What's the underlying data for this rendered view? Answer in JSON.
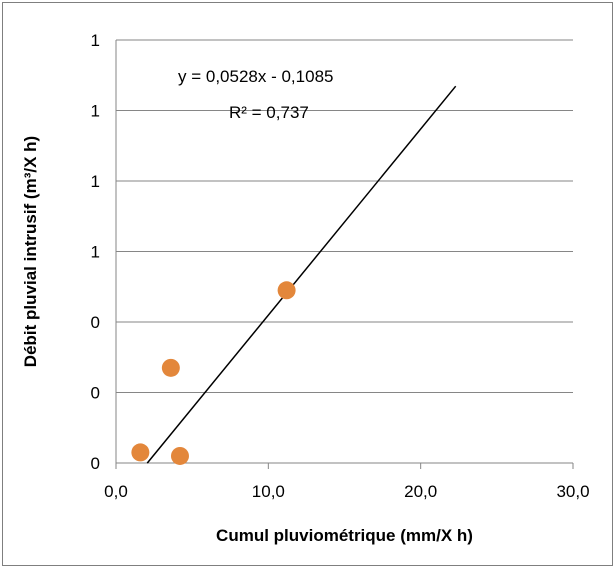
{
  "chart_data": {
    "type": "scatter",
    "title": "",
    "xlabel": "Cumul pluviométrique (mm/X h)",
    "ylabel": "Débit pluvial intrusif (m³/X h)",
    "xlim": [
      0,
      30
    ],
    "ylim": [
      0,
      1.2
    ],
    "x_ticks": [
      0,
      10,
      20,
      30
    ],
    "x_tick_labels": [
      "0,0",
      "10,0",
      "20,0",
      "30,0"
    ],
    "y_ticks": [
      0,
      0.2,
      0.4,
      0.6,
      0.8,
      1.0,
      1.2
    ],
    "y_tick_labels": [
      "0",
      "0",
      "0",
      "1",
      "1",
      "1",
      "1"
    ],
    "grid": "horizontal",
    "legend": "none",
    "series": [
      {
        "marker_color": "#e3873b",
        "points": [
          {
            "x": 1.6,
            "y": 0.03
          },
          {
            "x": 3.6,
            "y": 0.27
          },
          {
            "x": 4.2,
            "y": 0.02
          },
          {
            "x": 11.2,
            "y": 0.49
          }
        ]
      }
    ],
    "trendline": {
      "slope": 0.0528,
      "intercept": -0.1085,
      "x_range": [
        2.05,
        22.3
      ],
      "equation_label": "y = 0,0528x - 0,1085",
      "r2_label": "R² = 0,737",
      "color": "#000000"
    }
  }
}
